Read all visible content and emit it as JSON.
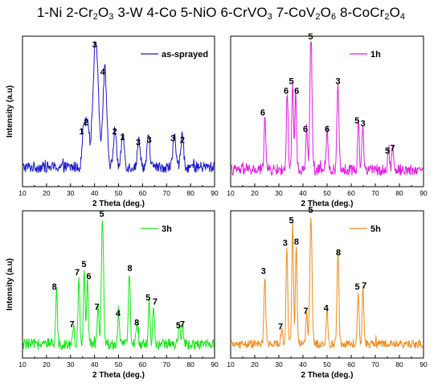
{
  "header": {
    "items": [
      {
        "label": "1-Ni",
        "formula": [
          [
            "1-Ni",
            ""
          ]
        ]
      },
      {
        "label": "2-Cr2O3",
        "formula": [
          [
            "2-Cr",
            ""
          ],
          [
            "2",
            "sub"
          ],
          [
            "O",
            ""
          ],
          [
            "3",
            "sub"
          ]
        ]
      },
      {
        "label": "3-W",
        "formula": [
          [
            "3-W",
            ""
          ]
        ]
      },
      {
        "label": "4-Co",
        "formula": [
          [
            "4-Co",
            ""
          ]
        ]
      },
      {
        "label": "5-NiO",
        "formula": [
          [
            "5-NiO",
            ""
          ]
        ]
      },
      {
        "label": "6-CrVO3",
        "formula": [
          [
            "6-CrVO",
            ""
          ],
          [
            "3",
            "sub"
          ]
        ]
      },
      {
        "label": "7-CoV2O6",
        "formula": [
          [
            "7-CoV",
            ""
          ],
          [
            "2",
            "sub"
          ],
          [
            "O",
            ""
          ],
          [
            "6",
            "sub"
          ]
        ]
      },
      {
        "label": "8-CoCr2O4",
        "formula": [
          [
            "8-CoCr",
            ""
          ],
          [
            "2",
            "sub"
          ],
          [
            "O",
            ""
          ],
          [
            "4",
            "sub"
          ]
        ]
      }
    ]
  },
  "chart_data": [
    {
      "type": "line",
      "legend": "as-sprayed",
      "legend_position": "top-right",
      "color": "#1a1acc",
      "xlabel": "2 Theta (deg.)",
      "ylabel": "Intensity (a.u)",
      "xlim": [
        10,
        90
      ],
      "x_ticks": [
        "10",
        "20",
        "30",
        "40",
        "50",
        "60",
        "70",
        "80",
        "90"
      ],
      "ylim": [
        0,
        100
      ],
      "baseline": 12,
      "noise": 4,
      "peaks": [
        {
          "x": 35.5,
          "y": 30,
          "w": 0.6
        },
        {
          "x": 37.0,
          "y": 36,
          "w": 0.7
        },
        {
          "x": 40.5,
          "y": 95,
          "w": 1.1
        },
        {
          "x": 44.3,
          "y": 72,
          "w": 0.8
        },
        {
          "x": 48.5,
          "y": 28,
          "w": 0.6
        },
        {
          "x": 51.8,
          "y": 24,
          "w": 0.6
        },
        {
          "x": 58.5,
          "y": 20,
          "w": 0.6
        },
        {
          "x": 62.5,
          "y": 22,
          "w": 0.6
        },
        {
          "x": 73.3,
          "y": 24,
          "w": 0.6
        },
        {
          "x": 76.5,
          "y": 22,
          "w": 0.6
        }
      ],
      "labels": [
        {
          "x": 34.6,
          "y": 36,
          "text": "1"
        },
        {
          "x": 36.6,
          "y": 43,
          "text": "2"
        },
        {
          "x": 40.0,
          "y": 100,
          "text": "3"
        },
        {
          "x": 43.4,
          "y": 80,
          "text": "4"
        },
        {
          "x": 48.4,
          "y": 36,
          "text": "2"
        },
        {
          "x": 51.6,
          "y": 32,
          "text": "1"
        },
        {
          "x": 58.2,
          "y": 28,
          "text": "3"
        },
        {
          "x": 62.8,
          "y": 30,
          "text": "3"
        },
        {
          "x": 72.6,
          "y": 31,
          "text": "3"
        },
        {
          "x": 76.6,
          "y": 30,
          "text": "2"
        }
      ]
    },
    {
      "type": "line",
      "legend": "1h",
      "legend_position": "top-right",
      "color": "#e21ee2",
      "xlabel": "2 Theta (deg.)",
      "ylabel": "",
      "xlim": [
        10,
        90
      ],
      "x_ticks": [
        "10",
        "20",
        "30",
        "40",
        "50",
        "60",
        "70",
        "80",
        "90"
      ],
      "ylim": [
        0,
        100
      ],
      "baseline": 10,
      "noise": 4,
      "peaks": [
        {
          "x": 24.2,
          "y": 42,
          "w": 0.35
        },
        {
          "x": 33.5,
          "y": 58,
          "w": 0.35
        },
        {
          "x": 35.7,
          "y": 65,
          "w": 0.35
        },
        {
          "x": 37.0,
          "y": 58,
          "w": 0.35
        },
        {
          "x": 41.5,
          "y": 30,
          "w": 0.35
        },
        {
          "x": 43.3,
          "y": 98,
          "w": 0.45
        },
        {
          "x": 50.0,
          "y": 30,
          "w": 0.35
        },
        {
          "x": 54.5,
          "y": 65,
          "w": 0.4
        },
        {
          "x": 63.0,
          "y": 36,
          "w": 0.35
        },
        {
          "x": 64.8,
          "y": 34,
          "w": 0.35
        },
        {
          "x": 75.5,
          "y": 16,
          "w": 0.35
        },
        {
          "x": 77.2,
          "y": 17,
          "w": 0.35
        }
      ],
      "labels": [
        {
          "x": 23.3,
          "y": 50,
          "text": "6"
        },
        {
          "x": 33.0,
          "y": 66,
          "text": "6"
        },
        {
          "x": 35.2,
          "y": 73,
          "text": "5"
        },
        {
          "x": 37.4,
          "y": 66,
          "text": "6"
        },
        {
          "x": 41.0,
          "y": 38,
          "text": "6"
        },
        {
          "x": 43.2,
          "y": 106,
          "text": "5"
        },
        {
          "x": 50.0,
          "y": 38,
          "text": "6"
        },
        {
          "x": 54.5,
          "y": 73,
          "text": "3"
        },
        {
          "x": 62.4,
          "y": 44,
          "text": "5"
        },
        {
          "x": 64.9,
          "y": 42,
          "text": "3"
        },
        {
          "x": 75.0,
          "y": 22,
          "text": "5"
        },
        {
          "x": 77.2,
          "y": 24,
          "text": "7"
        }
      ]
    },
    {
      "type": "line",
      "legend": "3h",
      "legend_position": "top-right",
      "color": "#14e614",
      "xlabel": "2 Theta (deg.)",
      "ylabel": "Intensity (a.u)",
      "xlim": [
        10,
        90
      ],
      "x_ticks": [
        "10",
        "20",
        "30",
        "40",
        "50",
        "60",
        "70",
        "80",
        "90"
      ],
      "ylim": [
        0,
        100
      ],
      "baseline": 8,
      "noise": 4,
      "peaks": [
        {
          "x": 24.2,
          "y": 40,
          "w": 0.35
        },
        {
          "x": 31.2,
          "y": 15,
          "w": 0.35
        },
        {
          "x": 33.5,
          "y": 52,
          "w": 0.35
        },
        {
          "x": 35.7,
          "y": 57,
          "w": 0.35
        },
        {
          "x": 37.0,
          "y": 48,
          "w": 0.35
        },
        {
          "x": 41.5,
          "y": 27,
          "w": 0.35
        },
        {
          "x": 43.3,
          "y": 95,
          "w": 0.45
        },
        {
          "x": 50.0,
          "y": 22,
          "w": 0.35
        },
        {
          "x": 54.5,
          "y": 55,
          "w": 0.4
        },
        {
          "x": 57.8,
          "y": 16,
          "w": 0.35
        },
        {
          "x": 62.8,
          "y": 33,
          "w": 0.35
        },
        {
          "x": 64.6,
          "y": 30,
          "w": 0.35
        },
        {
          "x": 75.3,
          "y": 14,
          "w": 0.35
        },
        {
          "x": 76.7,
          "y": 14,
          "w": 0.35
        }
      ],
      "labels": [
        {
          "x": 23.3,
          "y": 49,
          "text": "8"
        },
        {
          "x": 30.6,
          "y": 21,
          "text": "7"
        },
        {
          "x": 32.8,
          "y": 60,
          "text": "7"
        },
        {
          "x": 35.6,
          "y": 66,
          "text": "5"
        },
        {
          "x": 37.6,
          "y": 57,
          "text": "6"
        },
        {
          "x": 41.0,
          "y": 34,
          "text": "7"
        },
        {
          "x": 43.0,
          "y": 104,
          "text": "5"
        },
        {
          "x": 49.8,
          "y": 29,
          "text": "4"
        },
        {
          "x": 54.7,
          "y": 63,
          "text": "8"
        },
        {
          "x": 57.6,
          "y": 22,
          "text": "8"
        },
        {
          "x": 62.3,
          "y": 41,
          "text": "5"
        },
        {
          "x": 65.2,
          "y": 38,
          "text": "7"
        },
        {
          "x": 74.9,
          "y": 20,
          "text": "5"
        },
        {
          "x": 76.6,
          "y": 21,
          "text": "7"
        }
      ]
    },
    {
      "type": "line",
      "legend": "5h",
      "legend_position": "top-right",
      "color": "#f28a18",
      "xlabel": "2 Theta (deg.)",
      "ylabel": "",
      "xlim": [
        10,
        90
      ],
      "x_ticks": [
        "10",
        "20",
        "30",
        "40",
        "50",
        "60",
        "70",
        "80",
        "90"
      ],
      "ylim": [
        0,
        100
      ],
      "baseline": 8,
      "noise": 3,
      "peaks": [
        {
          "x": 24.2,
          "y": 52,
          "w": 0.35
        },
        {
          "x": 31.2,
          "y": 13,
          "w": 0.35
        },
        {
          "x": 33.3,
          "y": 74,
          "w": 0.35
        },
        {
          "x": 35.7,
          "y": 90,
          "w": 0.35
        },
        {
          "x": 37.2,
          "y": 75,
          "w": 0.35
        },
        {
          "x": 41.5,
          "y": 24,
          "w": 0.35
        },
        {
          "x": 43.3,
          "y": 98,
          "w": 0.45
        },
        {
          "x": 50.0,
          "y": 26,
          "w": 0.35
        },
        {
          "x": 54.5,
          "y": 67,
          "w": 0.4
        },
        {
          "x": 62.9,
          "y": 41,
          "w": 0.35
        },
        {
          "x": 64.9,
          "y": 42,
          "w": 0.35
        }
      ],
      "labels": [
        {
          "x": 23.6,
          "y": 61,
          "text": "3"
        },
        {
          "x": 30.7,
          "y": 19,
          "text": "7"
        },
        {
          "x": 32.6,
          "y": 82,
          "text": "3"
        },
        {
          "x": 35.2,
          "y": 99,
          "text": "5"
        },
        {
          "x": 37.3,
          "y": 83,
          "text": "8"
        },
        {
          "x": 41.2,
          "y": 31,
          "text": "7"
        },
        {
          "x": 43.2,
          "y": 107,
          "text": "5"
        },
        {
          "x": 49.6,
          "y": 33,
          "text": "4"
        },
        {
          "x": 54.7,
          "y": 75,
          "text": "8"
        },
        {
          "x": 62.5,
          "y": 49,
          "text": "5"
        },
        {
          "x": 65.4,
          "y": 50,
          "text": "7"
        }
      ]
    }
  ]
}
